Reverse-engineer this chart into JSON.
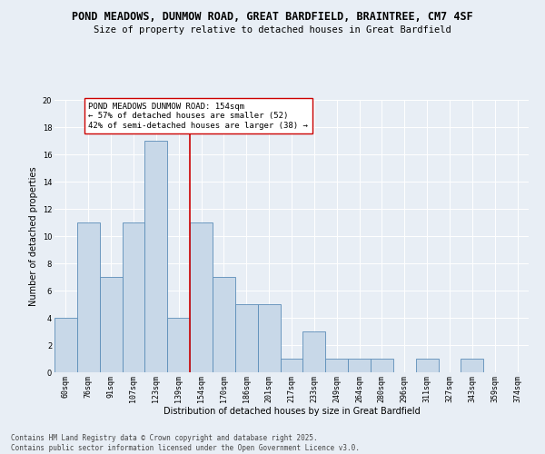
{
  "title1": "POND MEADOWS, DUNMOW ROAD, GREAT BARDFIELD, BRAINTREE, CM7 4SF",
  "title2": "Size of property relative to detached houses in Great Bardfield",
  "xlabel": "Distribution of detached houses by size in Great Bardfield",
  "ylabel": "Number of detached properties",
  "bin_labels": [
    "60sqm",
    "76sqm",
    "91sqm",
    "107sqm",
    "123sqm",
    "139sqm",
    "154sqm",
    "170sqm",
    "186sqm",
    "201sqm",
    "217sqm",
    "233sqm",
    "249sqm",
    "264sqm",
    "280sqm",
    "296sqm",
    "311sqm",
    "327sqm",
    "343sqm",
    "359sqm",
    "374sqm"
  ],
  "bin_values": [
    4,
    11,
    7,
    11,
    17,
    4,
    11,
    7,
    5,
    5,
    1,
    3,
    1,
    1,
    1,
    0,
    1,
    0,
    1,
    0,
    0
  ],
  "bar_color": "#c8d8e8",
  "bar_edge_color": "#5b8db8",
  "marker_index": 6,
  "marker_color": "#cc0000",
  "annotation_text": "POND MEADOWS DUNMOW ROAD: 154sqm\n← 57% of detached houses are smaller (52)\n42% of semi-detached houses are larger (38) →",
  "annotation_box_color": "#ffffff",
  "annotation_box_edge_color": "#cc0000",
  "ylim": [
    0,
    20
  ],
  "yticks": [
    0,
    2,
    4,
    6,
    8,
    10,
    12,
    14,
    16,
    18,
    20
  ],
  "background_color": "#e8eef5",
  "footer1": "Contains HM Land Registry data © Crown copyright and database right 2025.",
  "footer2": "Contains public sector information licensed under the Open Government Licence v3.0.",
  "title_fontsize": 8.5,
  "subtitle_fontsize": 7.5,
  "axis_label_fontsize": 7,
  "tick_fontsize": 6,
  "annotation_fontsize": 6.5,
  "footer_fontsize": 5.5
}
